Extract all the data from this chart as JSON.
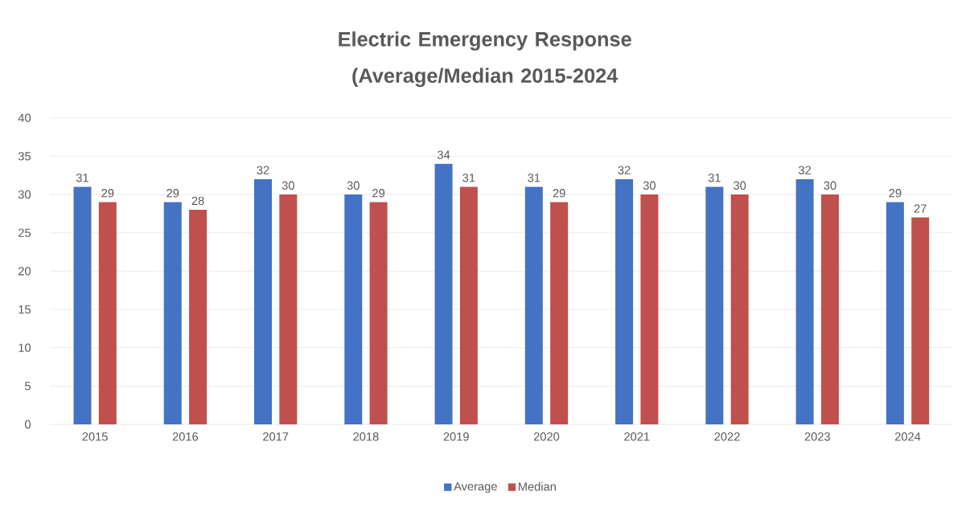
{
  "chart_data": {
    "type": "bar",
    "title": "Electric Emergency Response (Average/Median 2015-2024",
    "categories": [
      "2015",
      "2016",
      "2017",
      "2018",
      "2019",
      "2020",
      "2021",
      "2022",
      "2023",
      "2024"
    ],
    "series": [
      {
        "name": "Average",
        "color": "#4472c4",
        "values": [
          31,
          29,
          32,
          30,
          34,
          31,
          32,
          31,
          32,
          29
        ]
      },
      {
        "name": "Median",
        "color": "#c0504d",
        "values": [
          29,
          28,
          30,
          29,
          31,
          29,
          30,
          30,
          30,
          27
        ]
      }
    ],
    "ylim": [
      0,
      40
    ],
    "yticks": [
      0,
      5,
      10,
      15,
      20,
      25,
      30,
      35,
      40
    ],
    "grid": "y",
    "legend": "bottom",
    "data_labels": true
  }
}
